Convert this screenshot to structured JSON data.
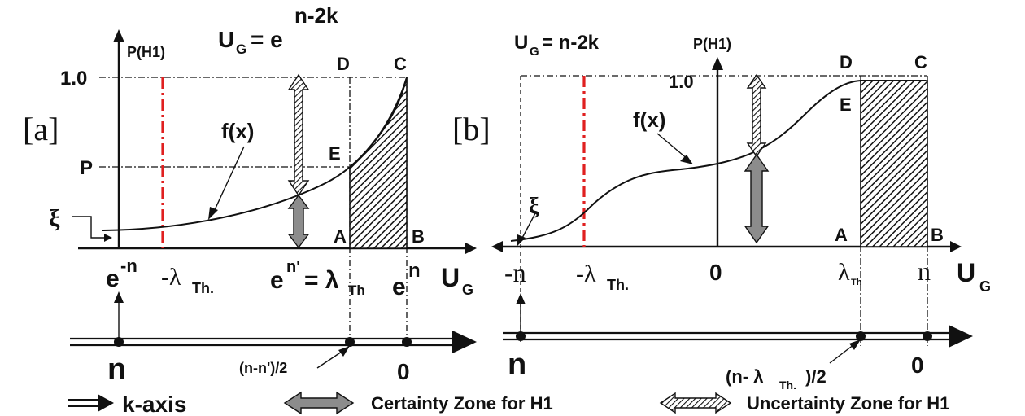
{
  "panel_a": {
    "tag": "[a]",
    "yaxis": "P(H1)",
    "equation_base": "U",
    "equation_sub": "G",
    "equation_eq": "= e",
    "equation_sup": "n-2k",
    "y_one": "1.0",
    "y_p": "P",
    "xi": "ξ",
    "fx": "f(x)",
    "pt_D": "D",
    "pt_C": "C",
    "pt_E": "E",
    "pt_A": "A",
    "pt_B": "B",
    "x_left_base": "e",
    "x_left_sup": "-n",
    "x_lambda": "-λ",
    "x_lambda_sub": "Th.",
    "x_mid_base": "e",
    "x_mid_sup": "n'",
    "x_mid_rest": "= λ",
    "x_mid_sub": "Th",
    "x_right_base": "e",
    "x_right_sup": "n",
    "ug": "U",
    "ug_sub": "G",
    "k_n": "n",
    "k_mid": "(n-n')/2",
    "k_zero": "0"
  },
  "panel_b": {
    "tag": "[b]",
    "yaxis": "P(H1)",
    "equation_base": "U",
    "equation_sub": "G",
    "equation_rest": "= n-2k",
    "y_one": "1.0",
    "xi": "ξ",
    "fx": "f(x)",
    "pt_D": "D",
    "pt_C": "C",
    "pt_E": "E",
    "pt_A": "A",
    "pt_B": "B",
    "x_left": "-n",
    "x_lambda": "-λ",
    "x_lambda_sub": "Th.",
    "x_zero": "0",
    "x_lth": "λ",
    "x_lth_sub": "Th",
    "x_right": "n",
    "ug": "U",
    "ug_sub": "G",
    "k_n": "n",
    "k_mid": "(n- λ",
    "k_mid_sub": "Th.",
    "k_mid_rest": ")/2",
    "k_zero": "0"
  },
  "legend": {
    "k_axis": "k-axis",
    "certainty": "Certainty Zone for H1",
    "uncertainty": "Uncertainty Zone for H1"
  },
  "colors": {
    "threshold_line": "#e02020",
    "certainty_fill": "#8c8c8c",
    "ink": "#111111"
  }
}
